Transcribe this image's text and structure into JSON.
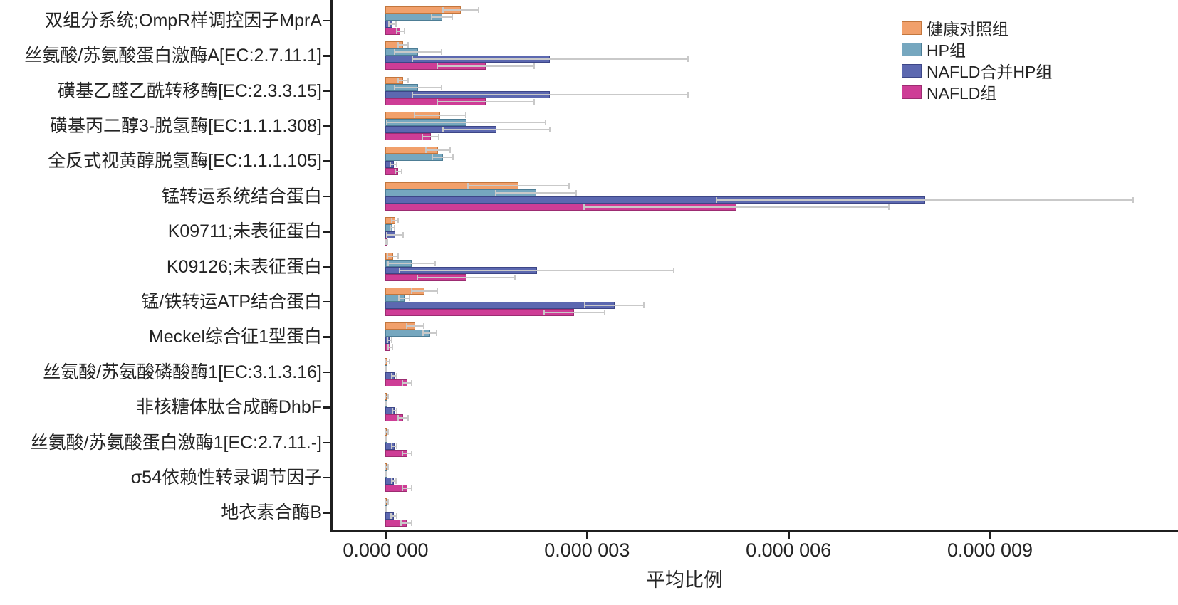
{
  "chart_data": {
    "type": "bar",
    "orientation": "horizontal",
    "title": "",
    "xlabel": "平均比例",
    "ylabel": "",
    "grid": false,
    "legend_position": "upper-right",
    "error_bars": true,
    "error_bar_color": "#c9c9c9",
    "axis_color": "#1f1f1f",
    "text_color": "#242424",
    "background_color": "#ffffff",
    "x_ticks": [
      0,
      3e-06,
      6e-06,
      9e-06
    ],
    "x_tick_labels": [
      "0.000 000",
      "0.000 003",
      "0.000 006",
      "0.000 009"
    ],
    "xlim": [
      -8e-07,
      1.18e-05
    ],
    "categories": [
      "双组分系统;OmpR样调控因子MprA",
      "丝氨酸/苏氨酸蛋白激酶A[EC:2.7.11.1]",
      "磺基乙醛乙酰转移酶[EC:2.3.3.15]",
      "磺基丙二醇3-脱氢酶[EC:1.1.1.308]",
      "全反式视黄醇脱氢酶[EC:1.1.1.105]",
      "锰转运系统结合蛋白",
      "K09711;未表征蛋白",
      "K09126;未表征蛋白",
      "锰/铁转运ATP结合蛋白",
      "Meckel综合征1型蛋白",
      "丝氨酸/苏氨酸磷酸酶1[EC:3.1.3.16]",
      "非核糖体肽合成酶DhbF",
      "丝氨酸/苏氨酸蛋白激酶1[EC:2.7.11.-]",
      "σ54依赖性转录调节因子",
      "地衣素合酶B"
    ],
    "series": [
      {
        "name": "健康对照组",
        "color": "#f1a06b",
        "edge_color": "#c2763d",
        "values": [
          1.12e-06,
          2.6e-07,
          2.6e-07,
          8.1e-07,
          7.8e-07,
          1.98e-06,
          1.4e-07,
          1.1e-07,
          5.8e-07,
          4.4e-07,
          3e-08,
          2e-08,
          2e-08,
          2e-08,
          2e-08
        ],
        "errors": [
          2.7e-07,
          7e-08,
          7e-08,
          3.8e-07,
          1.8e-07,
          7.5e-07,
          5e-08,
          8e-08,
          1.9e-07,
          1.3e-07,
          3e-08,
          2e-08,
          2e-08,
          2e-08,
          2e-08
        ]
      },
      {
        "name": "HP组",
        "color": "#76a7bf",
        "edge_color": "#4d7d95",
        "values": [
          8.4e-07,
          4.8e-07,
          4.8e-07,
          1.2e-06,
          8.5e-07,
          2.24e-06,
          1e-07,
          3.9e-07,
          2.8e-07,
          6.6e-07,
          1e-08,
          1e-08,
          1e-08,
          1e-08,
          1e-08
        ],
        "errors": [
          1.5e-07,
          3.5e-07,
          3.5e-07,
          1.18e-06,
          1.5e-07,
          6e-07,
          3e-08,
          3.5e-07,
          8e-08,
          1e-07,
          1e-08,
          1e-08,
          1e-08,
          1e-08,
          1e-08
        ]
      },
      {
        "name": "NAFLD合并HP组",
        "color": "#5c68b0",
        "edge_color": "#3d4687",
        "values": [
          1e-07,
          2.45e-06,
          2.45e-06,
          1.65e-06,
          1.2e-07,
          8.03e-06,
          1.4e-07,
          2.25e-06,
          3.41e-06,
          6e-08,
          1.3e-07,
          1.3e-07,
          1.3e-07,
          1.2e-07,
          1.2e-07
        ],
        "errors": [
          5e-08,
          2.05e-06,
          2.05e-06,
          8e-07,
          5e-08,
          3.1e-06,
          1.2e-07,
          2.04e-06,
          4.4e-07,
          3e-08,
          4e-08,
          3e-08,
          4e-08,
          3e-08,
          4e-08
        ]
      },
      {
        "name": "NAFLD组",
        "color": "#ce3d96",
        "edge_color": "#9c2c71",
        "values": [
          2.2e-07,
          1.49e-06,
          1.49e-06,
          6.7e-07,
          1.9e-07,
          5.22e-06,
          2e-08,
          1.2e-06,
          2.81e-06,
          7e-08,
          3.2e-07,
          2.6e-07,
          3.2e-07,
          3.2e-07,
          3.1e-07
        ],
        "errors": [
          6e-08,
          7.2e-07,
          7.2e-07,
          1.2e-07,
          5e-08,
          2.27e-06,
          1e-08,
          7.3e-07,
          4.5e-07,
          3e-08,
          7e-08,
          7e-08,
          7e-08,
          7e-08,
          8e-08
        ]
      }
    ]
  }
}
